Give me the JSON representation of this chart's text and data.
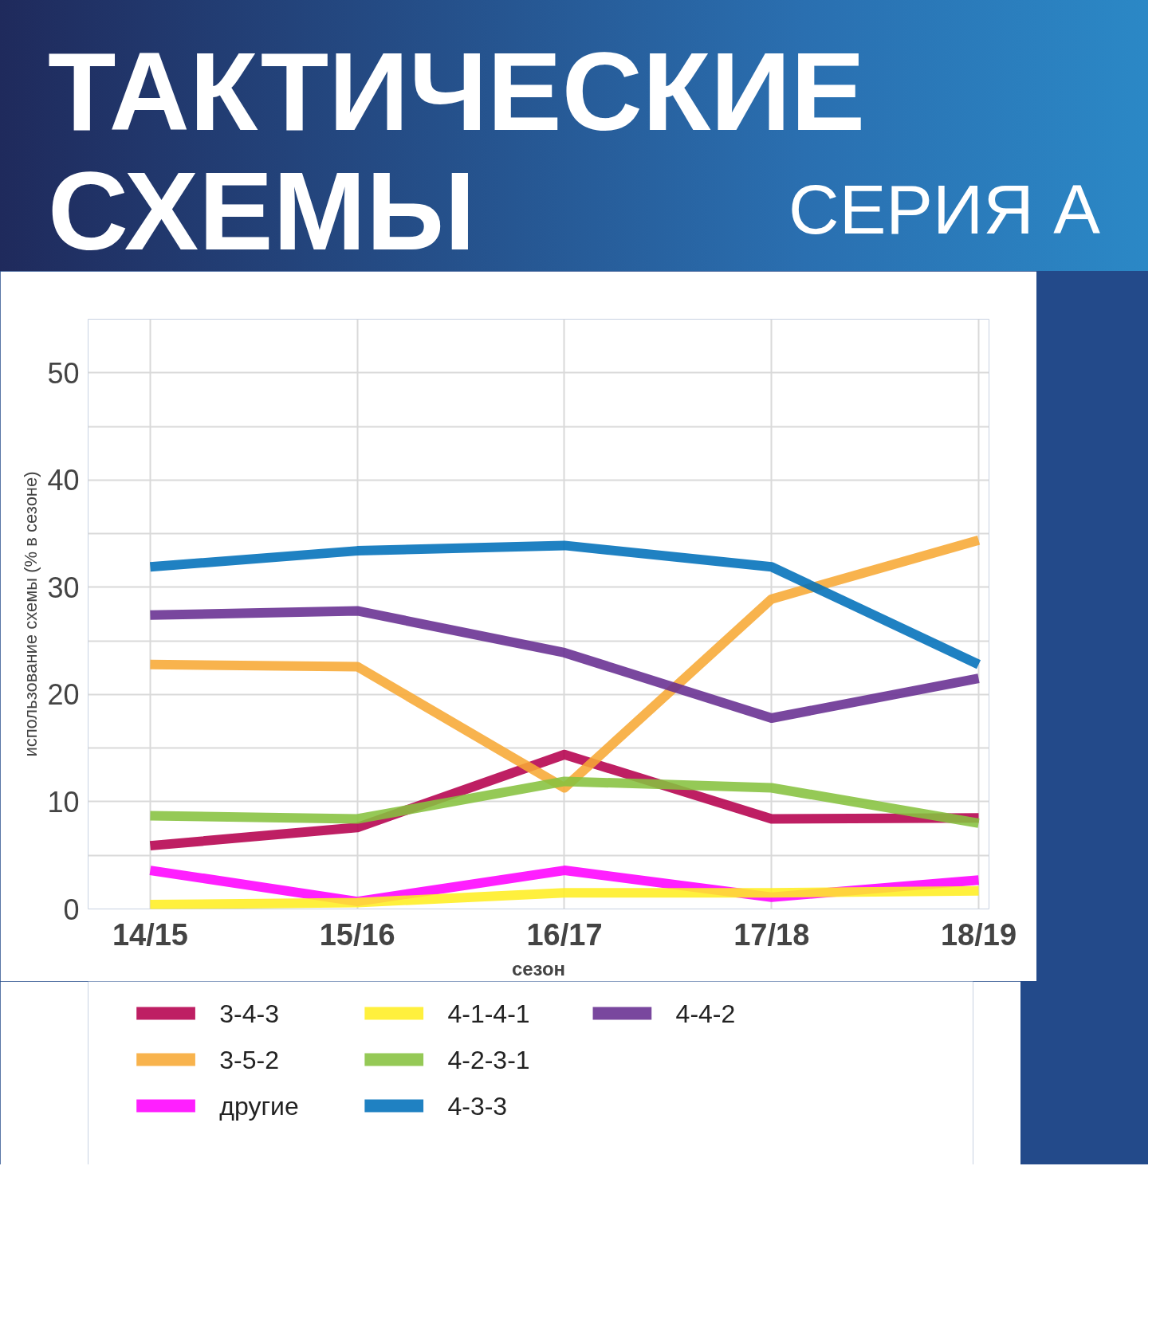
{
  "chart_data": {
    "type": "line",
    "title": "ТАКТИЧЕСКИЕ СХЕМЫ",
    "subtitle": "СЕРИЯ А",
    "xlabel": "сезон",
    "ylabel": "использование схемы (% в сезоне)",
    "categories": [
      "14/15",
      "15/16",
      "16/17",
      "17/18",
      "18/19"
    ],
    "ylim": [
      0,
      55
    ],
    "yticks": [
      0,
      {
        "value": 5,
        "label": null
      },
      10,
      {
        "value": 15,
        "label": null
      },
      20,
      {
        "value": 25,
        "label": null
      },
      30,
      {
        "value": 35,
        "label": null
      },
      40,
      {
        "value": 45,
        "label": null
      },
      50
    ],
    "grid": true,
    "legend": "bottom",
    "marker": "none",
    "line_style": "solid",
    "series": [
      {
        "name": "3-4-3",
        "color": "#b5004d",
        "values": [
          5.9,
          7.6,
          14.4,
          8.4,
          8.5
        ]
      },
      {
        "name": "3-5-2",
        "color": "#f7a934",
        "values": [
          22.8,
          22.6,
          11.3,
          28.9,
          34.4
        ]
      },
      {
        "name": "другие",
        "color": "#ff00ff",
        "values": [
          3.6,
          0.7,
          3.6,
          1.1,
          2.7
        ]
      },
      {
        "name": "4-1-4-1",
        "color": "#ffee22",
        "values": [
          0.4,
          0.6,
          1.5,
          1.5,
          1.7
        ]
      },
      {
        "name": "4-2-3-1",
        "color": "#86c13f",
        "values": [
          8.7,
          8.4,
          11.9,
          11.3,
          8.0
        ]
      },
      {
        "name": "4-3-3",
        "color": "#0070ba",
        "values": [
          31.9,
          33.4,
          33.9,
          31.9,
          22.8
        ]
      },
      {
        "name": "4-4-2",
        "color": "#662d91",
        "values": [
          27.4,
          27.8,
          23.9,
          17.8,
          21.5
        ]
      }
    ]
  }
}
